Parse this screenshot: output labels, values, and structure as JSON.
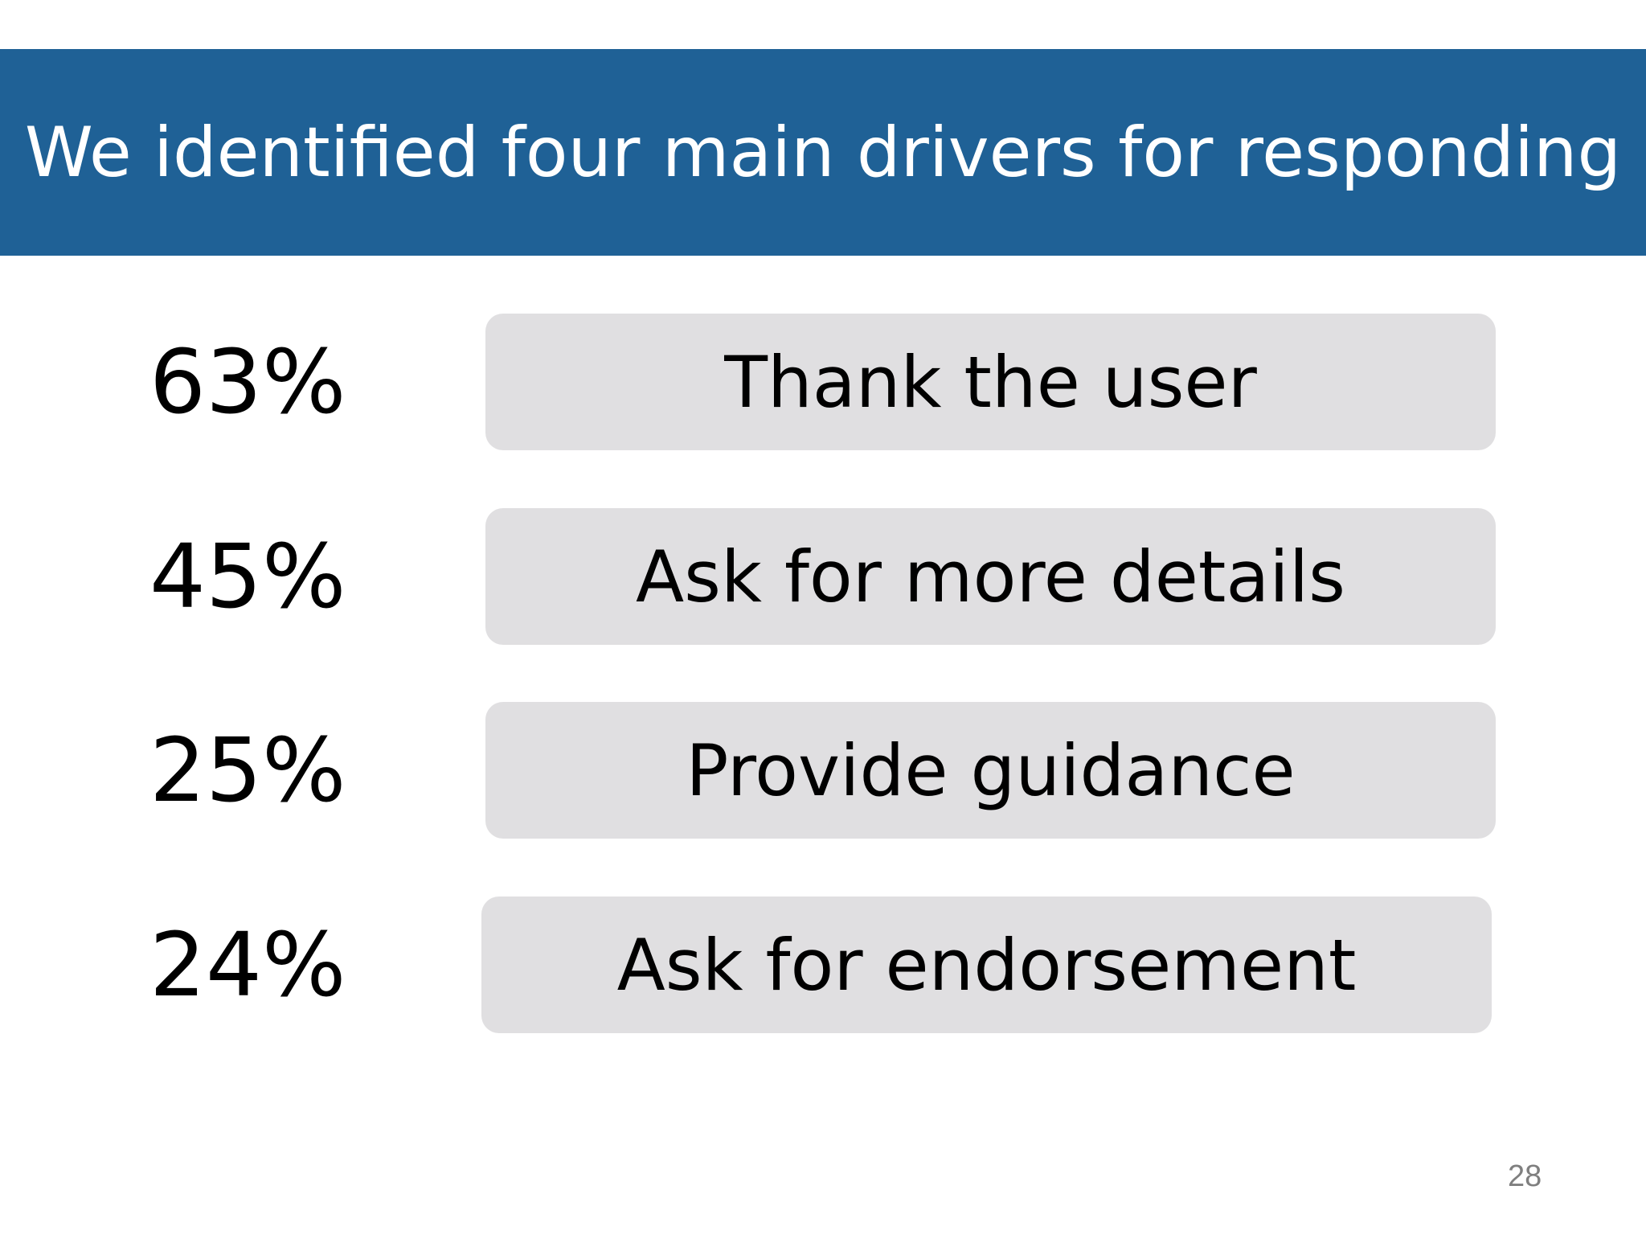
{
  "slide": {
    "title": "We identified four main drivers for responding",
    "page_number": "28"
  },
  "drivers": [
    {
      "percent": "63%",
      "label": "Thank the user"
    },
    {
      "percent": "45%",
      "label": "Ask for more details"
    },
    {
      "percent": "25%",
      "label": "Provide guidance"
    },
    {
      "percent": "24%",
      "label": "Ask for endorsement"
    }
  ],
  "colors": {
    "title_band": "#1f6196",
    "title_text": "#ffffff",
    "box_fill": "#e0dfe1",
    "page_number": "#7f7f7f"
  }
}
